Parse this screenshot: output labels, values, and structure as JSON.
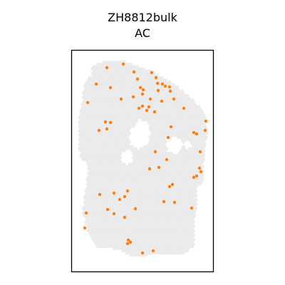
{
  "chart_data": {
    "type": "scatter",
    "title": "ZH8812bulk",
    "subtitle": "AC",
    "xlabel": "",
    "ylabel": "",
    "axes_ticks_visible": false,
    "grid": false,
    "tissue_background_color": "#ebebeb",
    "highlight_color": "#ff7f0e",
    "frame_color": "#000000",
    "xlim": [
      100,
      300
    ],
    "ylim": [
      70,
      382
    ],
    "highlighted_spots": [
      {
        "x": 150,
        "y": 95
      },
      {
        "x": 173,
        "y": 90
      },
      {
        "x": 188,
        "y": 101
      },
      {
        "x": 213,
        "y": 102
      },
      {
        "x": 219,
        "y": 109
      },
      {
        "x": 193,
        "y": 111
      },
      {
        "x": 135,
        "y": 118
      },
      {
        "x": 221,
        "y": 117
      },
      {
        "x": 228,
        "y": 118
      },
      {
        "x": 232,
        "y": 121
      },
      {
        "x": 238,
        "y": 122
      },
      {
        "x": 155,
        "y": 123
      },
      {
        "x": 197,
        "y": 123
      },
      {
        "x": 201,
        "y": 126
      },
      {
        "x": 222,
        "y": 127
      },
      {
        "x": 239,
        "y": 128
      },
      {
        "x": 187,
        "y": 136
      },
      {
        "x": 200,
        "y": 132
      },
      {
        "x": 211,
        "y": 139
      },
      {
        "x": 170,
        "y": 139
      },
      {
        "x": 244,
        "y": 139
      },
      {
        "x": 123,
        "y": 144
      },
      {
        "x": 227,
        "y": 142
      },
      {
        "x": 195,
        "y": 152
      },
      {
        "x": 206,
        "y": 155
      },
      {
        "x": 217,
        "y": 157
      },
      {
        "x": 200,
        "y": 149
      },
      {
        "x": 209,
        "y": 150
      },
      {
        "x": 258,
        "y": 152
      },
      {
        "x": 148,
        "y": 171
      },
      {
        "x": 155,
        "y": 172
      },
      {
        "x": 289,
        "y": 170
      },
      {
        "x": 240,
        "y": 178
      },
      {
        "x": 150,
        "y": 181
      },
      {
        "x": 139,
        "y": 183
      },
      {
        "x": 272,
        "y": 186
      },
      {
        "x": 276,
        "y": 188
      },
      {
        "x": 288,
        "y": 183
      },
      {
        "x": 236,
        "y": 193
      },
      {
        "x": 218,
        "y": 213
      },
      {
        "x": 281,
        "y": 213
      },
      {
        "x": 234,
        "y": 224
      },
      {
        "x": 223,
        "y": 235
      },
      {
        "x": 210,
        "y": 237
      },
      {
        "x": 280,
        "y": 236
      },
      {
        "x": 282,
        "y": 241
      },
      {
        "x": 276,
        "y": 247
      },
      {
        "x": 272,
        "y": 249
      },
      {
        "x": 242,
        "y": 259
      },
      {
        "x": 238,
        "y": 262
      },
      {
        "x": 179,
        "y": 268
      },
      {
        "x": 140,
        "y": 273
      },
      {
        "x": 160,
        "y": 271
      },
      {
        "x": 175,
        "y": 276
      },
      {
        "x": 168,
        "y": 280
      },
      {
        "x": 230,
        "y": 283
      },
      {
        "x": 245,
        "y": 284
      },
      {
        "x": 269,
        "y": 292
      },
      {
        "x": 151,
        "y": 294
      },
      {
        "x": 190,
        "y": 293
      },
      {
        "x": 121,
        "y": 299
      },
      {
        "x": 160,
        "y": 300
      },
      {
        "x": 175,
        "y": 305
      },
      {
        "x": 119,
        "y": 320
      },
      {
        "x": 180,
        "y": 337
      },
      {
        "x": 183,
        "y": 340
      },
      {
        "x": 179,
        "y": 342
      },
      {
        "x": 215,
        "y": 352
      },
      {
        "x": 200,
        "y": 355
      }
    ]
  }
}
